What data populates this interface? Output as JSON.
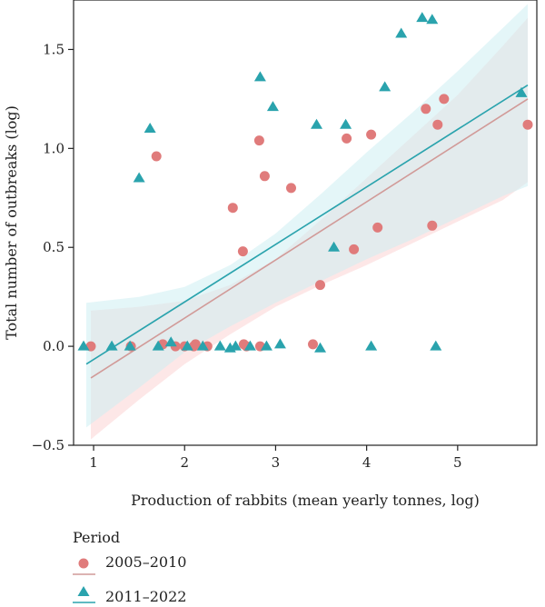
{
  "chart_data": {
    "type": "scatter",
    "xlabel": "Production of rabbits (mean yearly tonnes, log)",
    "ylabel": "Total number of outbreaks (log)",
    "xlim": [
      0.78,
      5.87
    ],
    "ylim": [
      -0.5,
      1.75
    ],
    "x_ticks": [
      1,
      2,
      3,
      4,
      5
    ],
    "x_tick_labels": [
      "1",
      "2",
      "3",
      "4",
      "5"
    ],
    "y_ticks": [
      -0.5,
      0.0,
      0.5,
      1.0,
      1.5
    ],
    "y_tick_labels": [
      "−0.5",
      "0.0",
      "0.5",
      "1.0",
      "1.5"
    ],
    "grid": false,
    "legend": {
      "title": "Period",
      "position": "bottom-left",
      "entries": [
        "2005–2010",
        "2011–2022"
      ]
    },
    "series": [
      {
        "name": "2005–2010",
        "marker": "circle",
        "color": "#e07b7b",
        "fit_color": "#d19a98",
        "band_color": "#fbd3d3",
        "x": [
          0.97,
          1.41,
          1.69,
          1.76,
          1.9,
          2.0,
          2.1,
          2.12,
          2.25,
          2.53,
          2.64,
          2.65,
          2.68,
          2.82,
          2.83,
          2.88,
          3.17,
          3.41,
          3.49,
          3.78,
          3.86,
          4.05,
          4.12,
          4.65,
          4.72,
          4.78,
          4.85,
          5.77
        ],
        "y": [
          0.0,
          0.0,
          0.96,
          0.01,
          0.0,
          0.0,
          0.0,
          0.01,
          0.0,
          0.7,
          0.48,
          0.01,
          0.0,
          1.04,
          0.0,
          0.86,
          0.8,
          0.01,
          0.31,
          1.05,
          0.49,
          1.07,
          0.6,
          1.2,
          0.61,
          1.12,
          1.25,
          1.12
        ],
        "fit": {
          "x": [
            0.97,
            5.77
          ],
          "y": [
            -0.16,
            1.25
          ]
        },
        "band": {
          "x": [
            0.97,
            1.5,
            2.0,
            2.5,
            3.0,
            3.5,
            4.0,
            4.5,
            5.0,
            5.5,
            5.77
          ],
          "upper": [
            0.18,
            0.2,
            0.23,
            0.31,
            0.44,
            0.64,
            0.85,
            1.06,
            1.27,
            1.52,
            1.66
          ],
          "lower": [
            -0.47,
            -0.27,
            -0.09,
            0.06,
            0.2,
            0.31,
            0.41,
            0.52,
            0.63,
            0.74,
            0.83
          ]
        }
      },
      {
        "name": "2011–2022",
        "marker": "triangle",
        "color": "#2aa3ad",
        "fit_color": "#2aa3ad",
        "band_color": "#cdeff2",
        "x": [
          0.89,
          1.2,
          1.4,
          1.5,
          1.62,
          1.71,
          1.85,
          2.03,
          2.2,
          2.39,
          2.5,
          2.56,
          2.72,
          2.83,
          2.9,
          2.97,
          3.05,
          3.45,
          3.49,
          3.64,
          3.77,
          4.05,
          4.2,
          4.38,
          4.61,
          4.72,
          4.76,
          5.7
        ],
        "y": [
          0.0,
          0.0,
          0.0,
          0.85,
          1.1,
          0.0,
          0.02,
          0.0,
          0.0,
          0.0,
          -0.01,
          0.0,
          0.0,
          1.36,
          0.0,
          1.21,
          0.01,
          1.12,
          -0.01,
          0.5,
          1.12,
          0.0,
          1.31,
          1.58,
          1.66,
          1.65,
          0.0,
          1.28
        ],
        "fit": {
          "x": [
            0.92,
            5.77
          ],
          "y": [
            -0.09,
            1.32
          ]
        },
        "band": {
          "x": [
            0.92,
            1.5,
            2.0,
            2.5,
            3.0,
            3.5,
            4.0,
            4.5,
            5.0,
            5.5,
            5.77
          ],
          "upper": [
            0.22,
            0.25,
            0.3,
            0.41,
            0.57,
            0.77,
            0.98,
            1.18,
            1.39,
            1.61,
            1.73
          ],
          "lower": [
            -0.41,
            -0.21,
            -0.03,
            0.1,
            0.22,
            0.33,
            0.44,
            0.54,
            0.65,
            0.76,
            0.81
          ]
        }
      }
    ]
  }
}
